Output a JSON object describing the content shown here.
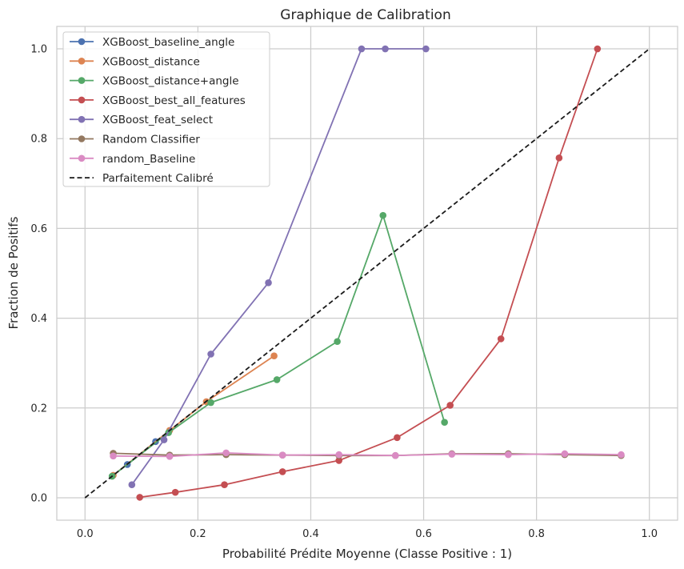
{
  "chart_data": {
    "type": "line",
    "title": "Graphique de Calibration",
    "xlabel": "Probabilité Prédite Moyenne (Classe Positive : 1)",
    "ylabel": "Fraction de Positifs",
    "xlim": [
      -0.05,
      1.05
    ],
    "ylim": [
      -0.05,
      1.05
    ],
    "x_ticks": [
      0.0,
      0.2,
      0.4,
      0.6,
      0.8,
      1.0
    ],
    "y_ticks": [
      0.0,
      0.2,
      0.4,
      0.6,
      0.8,
      1.0
    ],
    "x_tick_labels": [
      "0.0",
      "0.2",
      "0.4",
      "0.6",
      "0.8",
      "1.0"
    ],
    "y_tick_labels": [
      "0.0",
      "0.2",
      "0.4",
      "0.6",
      "0.8",
      "1.0"
    ],
    "grid": true,
    "legend_position": "top-left",
    "series": [
      {
        "name": "XGBoost_baseline_angle",
        "color": "#4c72b0",
        "marker": "circle",
        "x": [
          0.075,
          0.125
        ],
        "y": [
          0.074,
          0.125
        ]
      },
      {
        "name": "XGBoost_distance",
        "color": "#dd8452",
        "marker": "circle",
        "x": [
          0.05,
          0.15,
          0.215,
          0.335
        ],
        "y": [
          0.05,
          0.15,
          0.214,
          0.316
        ]
      },
      {
        "name": "XGBoost_distance+angle",
        "color": "#55a868",
        "marker": "circle",
        "x": [
          0.048,
          0.148,
          0.223,
          0.34,
          0.447,
          0.528,
          0.637
        ],
        "y": [
          0.048,
          0.145,
          0.212,
          0.263,
          0.348,
          0.629,
          0.168
        ]
      },
      {
        "name": "XGBoost_best_all_features",
        "color": "#c44e52",
        "marker": "circle",
        "x": [
          0.097,
          0.16,
          0.247,
          0.35,
          0.45,
          0.553,
          0.647,
          0.737,
          0.84,
          0.908
        ],
        "y": [
          0.001,
          0.012,
          0.029,
          0.058,
          0.083,
          0.134,
          0.206,
          0.354,
          0.757,
          1.0
        ]
      },
      {
        "name": "XGBoost_feat_select",
        "color": "#8172b3",
        "marker": "circle",
        "x": [
          0.083,
          0.14,
          0.223,
          0.325,
          0.49,
          0.532,
          0.604
        ],
        "y": [
          0.029,
          0.129,
          0.32,
          0.479,
          1.0,
          1.0,
          1.0
        ]
      },
      {
        "name": "Random Classifier",
        "color": "#937860",
        "marker": "circle",
        "x": [
          0.05,
          0.15,
          0.25,
          0.35,
          0.45,
          0.55,
          0.65,
          0.75,
          0.85,
          0.95
        ],
        "y": [
          0.099,
          0.095,
          0.096,
          0.095,
          0.094,
          0.094,
          0.098,
          0.098,
          0.096,
          0.094
        ]
      },
      {
        "name": "random_Baseline",
        "color": "#da8bc3",
        "marker": "circle",
        "x": [
          0.05,
          0.15,
          0.25,
          0.35,
          0.45,
          0.55,
          0.65,
          0.75,
          0.85,
          0.95
        ],
        "y": [
          0.093,
          0.092,
          0.1,
          0.095,
          0.096,
          0.094,
          0.097,
          0.096,
          0.098,
          0.096
        ]
      },
      {
        "name": "Parfaitement Calibré",
        "color": "#1a1a1a",
        "dashed": true,
        "x": [
          0.0,
          1.0
        ],
        "y": [
          0.0,
          1.0
        ]
      }
    ]
  }
}
